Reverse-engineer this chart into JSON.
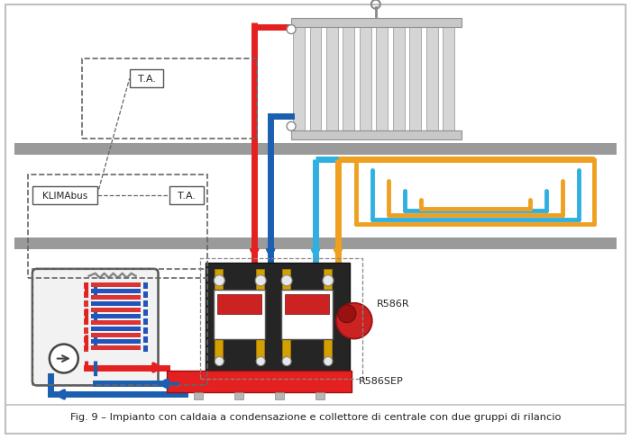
{
  "title": "Fig. 9 – Impianto con caldaia a condensazione e collettore di centrale con due gruppi di rilancio",
  "bg_color": "#ffffff",
  "border_color": "#c0c0c0",
  "red": "#e52020",
  "blue": "#1a5fb0",
  "light_blue": "#30b0e0",
  "orange": "#f0a020",
  "dark_gray": "#555555",
  "gray": "#909090",
  "light_gray": "#b0b0b0",
  "yellow_gold": "#d4a000",
  "black": "#222222",
  "dark_bg": "#252525",
  "floor_color": "#9a9a9a",
  "label_R586R": "R586R",
  "label_R586SEP": "R586SEP",
  "label_TA": "T.A.",
  "label_KLIMAbus": "KLIMAbus"
}
